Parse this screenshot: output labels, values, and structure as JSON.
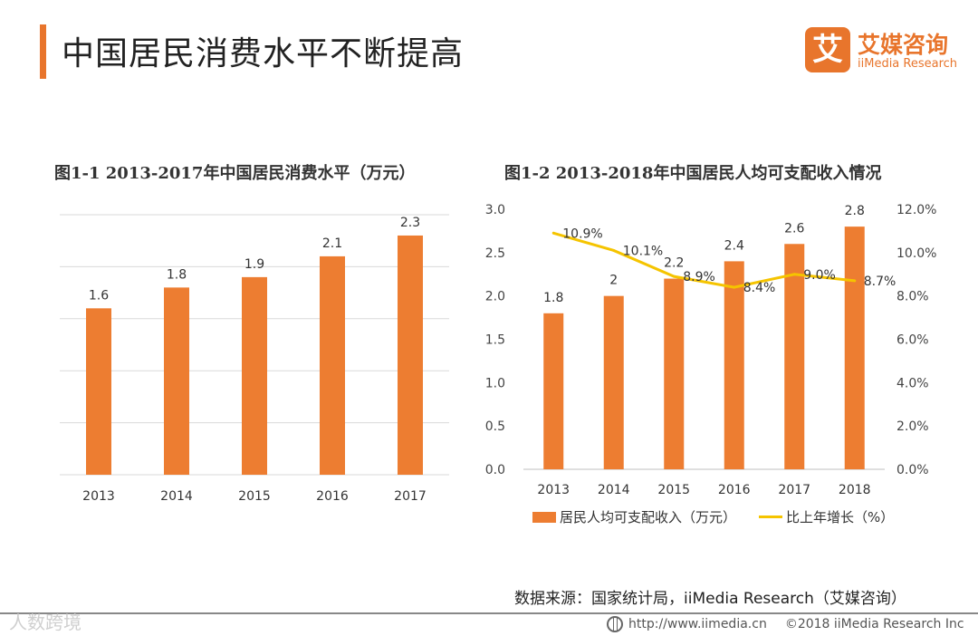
{
  "header": {
    "title": "中国居民消费水平不断提高"
  },
  "logo": {
    "mark": "艾",
    "name_cn": "艾媒咨询",
    "name_en": "iiMedia Research"
  },
  "colors": {
    "accent": "#e8752c",
    "bar": "#ed7d31",
    "line": "#f5c400"
  },
  "chart_data": [
    {
      "type": "bar",
      "title": "图1-1 2013-2017年中国居民消费水平（万元）",
      "categories": [
        "2013",
        "2014",
        "2015",
        "2016",
        "2017"
      ],
      "values": [
        1.6,
        1.8,
        1.9,
        2.1,
        2.3
      ],
      "data_labels": [
        "1.6",
        "1.8",
        "1.9",
        "2.1",
        "2.3"
      ],
      "ylim": [
        0,
        2.5
      ],
      "grid": true
    },
    {
      "type": "bar",
      "title": "图1-2 2013-2018年中国居民人均可支配收入情况",
      "categories": [
        "2013",
        "2014",
        "2015",
        "2016",
        "2017",
        "2018"
      ],
      "series": [
        {
          "name": "居民人均可支配收入（万元）",
          "type": "bar",
          "values": [
            1.8,
            2.0,
            2.2,
            2.4,
            2.6,
            2.8
          ],
          "labels": [
            "1.8",
            "2",
            "2.2",
            "2.4",
            "2.6",
            "2.8"
          ]
        },
        {
          "name": "比上年增长（%）",
          "type": "line",
          "axis": "right",
          "values": [
            10.9,
            10.1,
            8.9,
            8.4,
            9.0,
            8.7
          ],
          "labels": [
            "10.9%",
            "10.1%",
            "8.9%",
            "8.4%",
            "9.0%",
            "8.7%"
          ]
        }
      ],
      "left_ticks": [
        "0.0",
        "0.5",
        "1.0",
        "1.5",
        "2.0",
        "2.5",
        "3.0"
      ],
      "right_ticks": [
        "0.0%",
        "2.0%",
        "4.0%",
        "6.0%",
        "8.0%",
        "10.0%",
        "12.0%"
      ],
      "ylim_left": [
        0,
        3.0
      ],
      "ylim_right": [
        0,
        12.0
      ],
      "legend_position": "bottom"
    }
  ],
  "source": "数据来源：国家统计局，iiMedia Research（艾媒咨询）",
  "footer": {
    "url": "http://www.iimedia.cn",
    "copyright": "©2018  iiMedia Research  Inc"
  },
  "watermark": "人数跨境"
}
